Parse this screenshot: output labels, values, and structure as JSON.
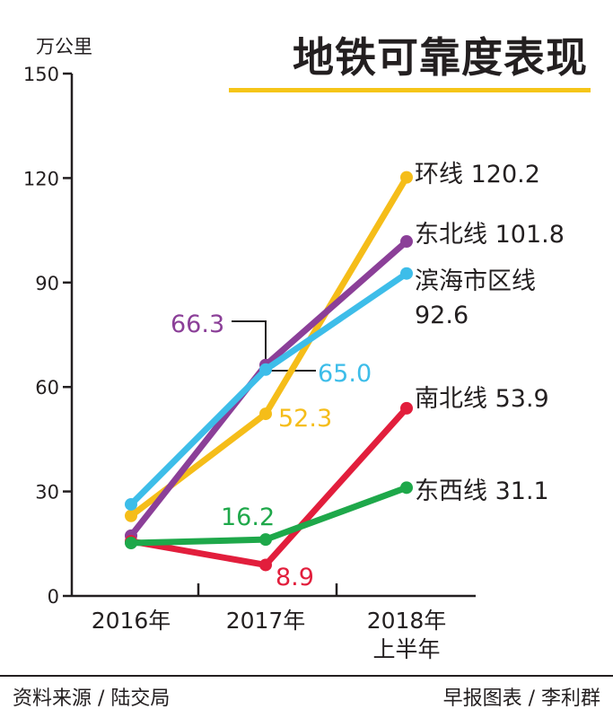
{
  "title": "地铁可靠度表现",
  "footer": {
    "source": "资料来源 / 陆交局",
    "credit": "早报图表 / 李利群"
  },
  "chart_data": {
    "type": "line",
    "title": "地铁可靠度表现",
    "ylabel": "万公里",
    "xlabel": "",
    "ylim": [
      0,
      150
    ],
    "yticks": [
      0,
      30,
      60,
      90,
      120,
      150
    ],
    "categories": [
      [
        "2016年"
      ],
      [
        "2017年"
      ],
      [
        "2018年",
        "上半年"
      ]
    ],
    "grid": false,
    "series": [
      {
        "name": "环线",
        "color": "#f5bd19",
        "values": [
          23,
          52.3,
          120.2
        ],
        "end_label": [
          "环线 120.2"
        ],
        "mid_label": "52.3"
      },
      {
        "name": "东北线",
        "color": "#8b3f98",
        "values": [
          17.3,
          66.3,
          101.8
        ],
        "end_label": [
          "东北线 101.8"
        ],
        "mid_label": "66.3"
      },
      {
        "name": "滨海市区线",
        "color": "#3dbde9",
        "values": [
          26.3,
          65.0,
          92.6
        ],
        "end_label": [
          "滨海市区线",
          "92.6"
        ],
        "mid_label": "65.0"
      },
      {
        "name": "南北线",
        "color": "#e21e3c",
        "values": [
          15.7,
          8.9,
          53.9
        ],
        "end_label": [
          "南北线 53.9"
        ],
        "mid_label": "8.9"
      },
      {
        "name": "东西线",
        "color": "#1ea84a",
        "values": [
          15.2,
          16.2,
          31.1
        ],
        "end_label": [
          "东西线 31.1"
        ],
        "mid_label": "16.2"
      }
    ]
  }
}
